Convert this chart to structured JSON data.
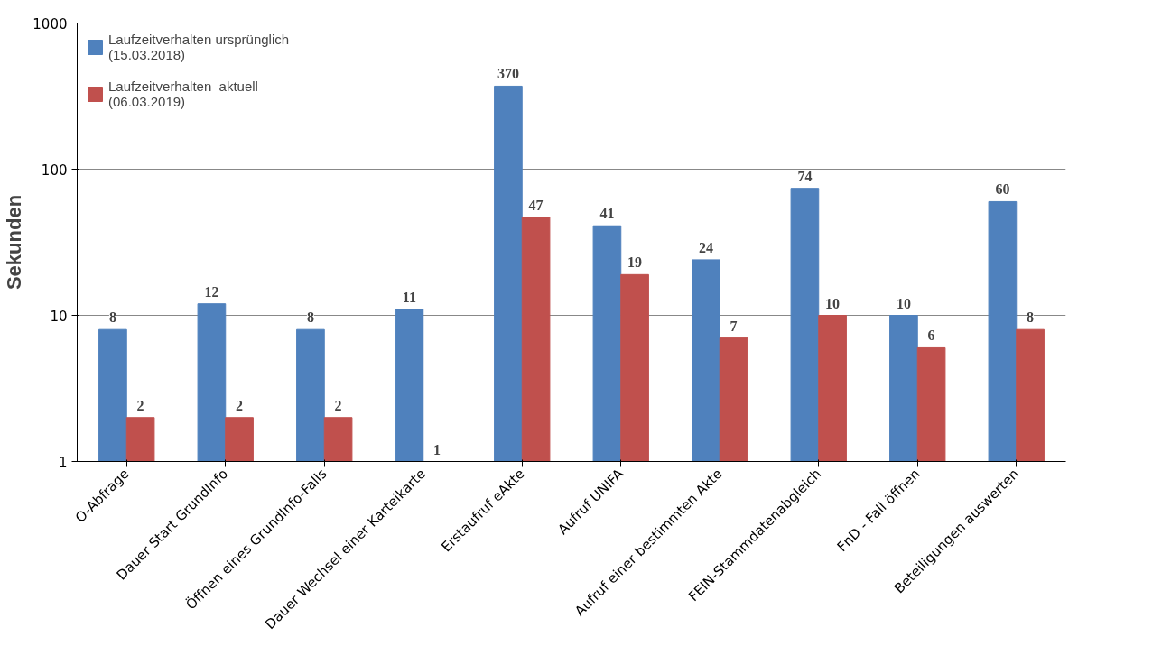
{
  "chart_data": {
    "type": "bar",
    "ylabel": "Sekunden",
    "categories": [
      "O-Abfrage",
      "Dauer Start GrundInfo",
      "Öffnen eines GrundInfo-Falls",
      "Dauer Wechsel einer Karteikarte",
      "Erstaufruf eAkte",
      "Aufruf UNIFA",
      "Aufruf einer bestimmten Akte",
      "FEIN-Stammdatenabgleich",
      "FnD - Fall öffnen",
      "Beteiligungen auswerten"
    ],
    "series": [
      {
        "name": "Laufzeitverhalten ursprünglich\n(15.03.2018)",
        "color": "#4f81bd",
        "values": [
          8,
          12,
          8,
          11,
          370,
          41,
          24,
          74,
          10,
          60
        ]
      },
      {
        "name": "Laufzeitverhalten  aktuell\n(06.03.2019)",
        "color": "#c0504d",
        "values": [
          2,
          2,
          2,
          1,
          47,
          19,
          7,
          10,
          6,
          8
        ]
      }
    ],
    "log": true,
    "ylim": [
      1,
      1000
    ],
    "yticks": [
      1,
      10,
      100,
      1000
    ],
    "grid": "y",
    "legend": "top left",
    "data_labels": true
  }
}
